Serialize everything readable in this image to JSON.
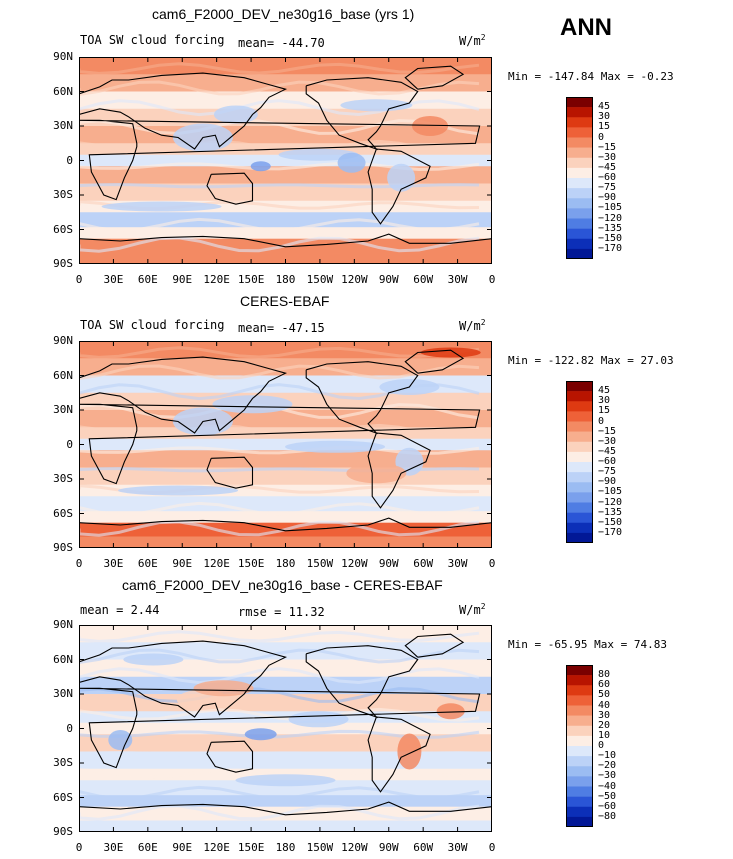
{
  "season": "ANN",
  "units_base": "W/m",
  "units_sup": "2",
  "lat_ticks": [
    "90N",
    "60N",
    "30N",
    "0",
    "30S",
    "60S",
    "90S"
  ],
  "lon_ticks": [
    "0",
    "30E",
    "60E",
    "90E",
    "120E",
    "150E",
    "180",
    "150W",
    "120W",
    "90W",
    "60W",
    "30W",
    "0"
  ],
  "panels": [
    {
      "title": "cam6_F2000_DEV_ne30g16_base (yrs 1)",
      "left_label": "TOA SW cloud forcing",
      "stat_label": "mean= -44.70",
      "min_max": "Min = -147.84 Max =  -0.23",
      "colorbar": [
        "45",
        "30",
        "15",
        "0",
        "−15",
        "−30",
        "−45",
        "−60",
        "−75",
        "−90",
        "−105",
        "−120",
        "−135",
        "−150",
        "−170"
      ],
      "colors": [
        "#7a0000",
        "#b81400",
        "#de3a12",
        "#ee6138",
        "#f38a63",
        "#f7ae8e",
        "#fbd2bd",
        "#fdeee5",
        "#dde8fa",
        "#bcd2f7",
        "#9bbcf2",
        "#7aa0ec",
        "#4f7de3",
        "#2a55d6",
        "#0c2fb8",
        "#021896"
      ]
    },
    {
      "title": "CERES-EBAF",
      "left_label": "TOA SW cloud forcing",
      "stat_label": "mean= -47.15",
      "min_max": "Min = -122.82 Max =  27.03",
      "colorbar": [
        "45",
        "30",
        "15",
        "0",
        "−15",
        "−30",
        "−45",
        "−60",
        "−75",
        "−90",
        "−105",
        "−120",
        "−135",
        "−150",
        "−170"
      ],
      "colors": [
        "#7a0000",
        "#b81400",
        "#de3a12",
        "#ee6138",
        "#f38a63",
        "#f7ae8e",
        "#fbd2bd",
        "#fdeee5",
        "#dde8fa",
        "#bcd2f7",
        "#9bbcf2",
        "#7aa0ec",
        "#4f7de3",
        "#2a55d6",
        "#0c2fb8",
        "#021896"
      ]
    },
    {
      "title": "cam6_F2000_DEV_ne30g16_base - CERES-EBAF",
      "left_label": "mean =   2.44",
      "stat_label": "rmse =  11.32",
      "min_max": "Min = -65.95 Max =  74.83",
      "colorbar": [
        "80",
        "60",
        "50",
        "40",
        "30",
        "20",
        "10",
        "0",
        "−10",
        "−20",
        "−30",
        "−40",
        "−50",
        "−60",
        "−80"
      ],
      "colors": [
        "#7a0000",
        "#b81400",
        "#de3a12",
        "#ee6138",
        "#f38a63",
        "#f7ae8e",
        "#fbd2bd",
        "#fdeee5",
        "#dde8fa",
        "#bcd2f7",
        "#9bbcf2",
        "#7aa0ec",
        "#4f7de3",
        "#2a55d6",
        "#0c2fb8",
        "#021896"
      ]
    }
  ]
}
